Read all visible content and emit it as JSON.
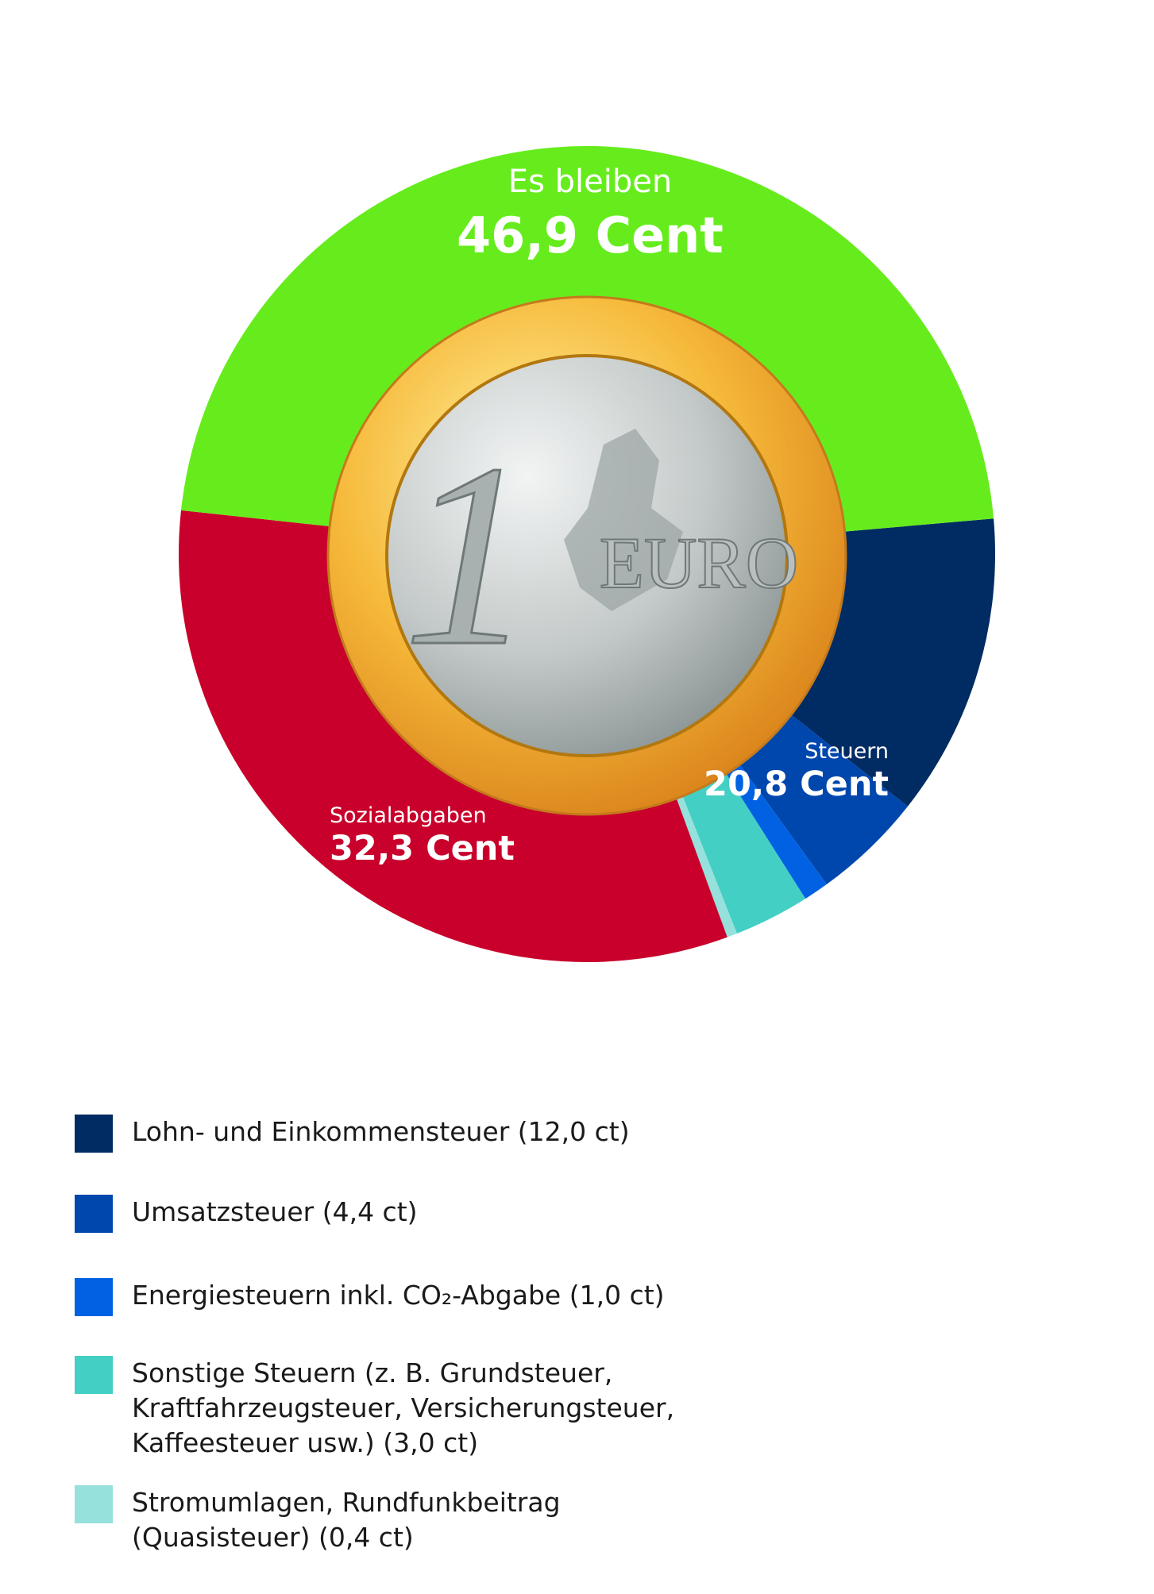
{
  "chart_data": {
    "type": "pie",
    "categories": [
      "Es bleiben",
      "Sozialabgaben",
      "Lohn- und Einkommensteuer",
      "Umsatzsteuer",
      "Energiesteuern inkl. CO₂-Abgabe",
      "Sonstige Steuern (z. B. Grundsteuer, Kraftfahrzeugsteuer, Versicherungsteuer, Kaffeesteuer usw.)",
      "Stromumlagen, Rundfunkbeitrag (Quasisteuer)"
    ],
    "values": [
      46.9,
      32.3,
      12.0,
      4.4,
      1.0,
      3.0,
      0.4
    ],
    "value_labels": [
      "46,9 Cent",
      "32,3 Cent",
      "(12,0 ct)",
      "(4,4 ct)",
      "(1,0 ct)",
      "(3,0 ct)",
      "(0,4 ct)"
    ],
    "colors": [
      "#66ec1c",
      "#c8002b",
      "#002b63",
      "#0047ad",
      "#0062e3",
      "#44cfc4",
      "#96e1dc"
    ],
    "groups": [
      {
        "name": "Steuern",
        "value": 20.8,
        "value_label": "20,8 Cent",
        "members": [
          2,
          3,
          4,
          5,
          6
        ]
      }
    ],
    "coin": {
      "denomination": "1",
      "text": "EURO"
    }
  }
}
